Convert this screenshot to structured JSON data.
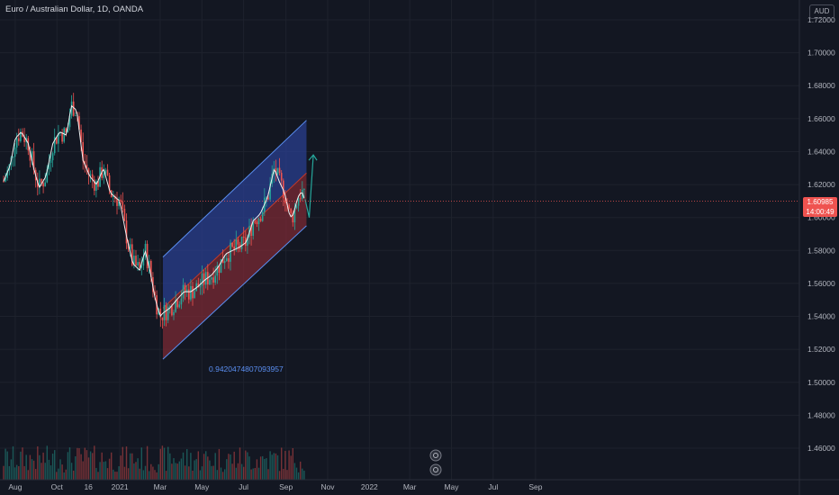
{
  "header": {
    "title": "Euro / Australian Dollar, 1D, OANDA"
  },
  "price_axis": {
    "currency": "AUD",
    "current_price": "1.60985",
    "countdown": "14:00:49"
  },
  "annotations": {
    "channel_ratio": "0.9420474807093957"
  },
  "colors": {
    "background": "#131722",
    "bull": "#26a69a",
    "bear": "#ef5350",
    "channel_upper_fill": "#2a3f8f",
    "channel_lower_fill": "#7a2a34",
    "moving_average": "#f0f0f0",
    "projection_arrow": "#26a69a"
  },
  "chart_data": {
    "type": "candlestick",
    "x_ticks": [
      "Aug",
      "Oct",
      "16",
      "2021",
      "Mar",
      "May",
      "Jul",
      "Sep",
      "Nov",
      "2022",
      "Mar",
      "May",
      "Jul",
      "Sep"
    ],
    "y_ticks": [
      "1.72000",
      "1.70000",
      "1.68000",
      "1.66000",
      "1.64000",
      "1.62000",
      "1.60000",
      "1.58000",
      "1.56000",
      "1.54000",
      "1.52000",
      "1.50000",
      "1.48000",
      "1.46000"
    ],
    "ylim": [
      1.45,
      1.72
    ],
    "close_path": [
      {
        "t": "2020-07-15",
        "v": 1.622
      },
      {
        "t": "2020-07-25",
        "v": 1.632
      },
      {
        "t": "2020-08-01",
        "v": 1.648
      },
      {
        "t": "2020-08-10",
        "v": 1.652
      },
      {
        "t": "2020-08-20",
        "v": 1.645
      },
      {
        "t": "2020-08-28",
        "v": 1.63
      },
      {
        "t": "2020-09-05",
        "v": 1.618
      },
      {
        "t": "2020-09-15",
        "v": 1.625
      },
      {
        "t": "2020-09-25",
        "v": 1.645
      },
      {
        "t": "2020-10-05",
        "v": 1.652
      },
      {
        "t": "2020-10-15",
        "v": 1.65
      },
      {
        "t": "2020-10-22",
        "v": 1.668
      },
      {
        "t": "2020-10-30",
        "v": 1.665
      },
      {
        "t": "2020-11-08",
        "v": 1.635
      },
      {
        "t": "2020-11-18",
        "v": 1.625
      },
      {
        "t": "2020-11-28",
        "v": 1.62
      },
      {
        "t": "2020-12-08",
        "v": 1.63
      },
      {
        "t": "2020-12-18",
        "v": 1.615
      },
      {
        "t": "2021-01-01",
        "v": 1.61
      },
      {
        "t": "2021-01-10",
        "v": 1.59
      },
      {
        "t": "2021-01-20",
        "v": 1.572
      },
      {
        "t": "2021-01-30",
        "v": 1.568
      },
      {
        "t": "2021-02-07",
        "v": 1.58
      },
      {
        "t": "2021-02-14",
        "v": 1.568
      },
      {
        "t": "2021-02-22",
        "v": 1.55
      },
      {
        "t": "2021-03-01",
        "v": 1.54
      },
      {
        "t": "2021-03-05",
        "v": 1.542
      },
      {
        "t": "2021-03-15",
        "v": 1.545
      },
      {
        "t": "2021-03-25",
        "v": 1.55
      },
      {
        "t": "2021-04-05",
        "v": 1.555
      },
      {
        "t": "2021-04-15",
        "v": 1.555
      },
      {
        "t": "2021-04-25",
        "v": 1.558
      },
      {
        "t": "2021-05-05",
        "v": 1.562
      },
      {
        "t": "2021-05-15",
        "v": 1.565
      },
      {
        "t": "2021-05-25",
        "v": 1.57
      },
      {
        "t": "2021-06-05",
        "v": 1.578
      },
      {
        "t": "2021-06-15",
        "v": 1.58
      },
      {
        "t": "2021-06-25",
        "v": 1.582
      },
      {
        "t": "2021-07-05",
        "v": 1.585
      },
      {
        "t": "2021-07-15",
        "v": 1.598
      },
      {
        "t": "2021-07-25",
        "v": 1.602
      },
      {
        "t": "2021-08-05",
        "v": 1.612
      },
      {
        "t": "2021-08-15",
        "v": 1.63
      },
      {
        "t": "2021-08-22",
        "v": 1.622
      },
      {
        "t": "2021-08-30",
        "v": 1.615
      },
      {
        "t": "2021-09-07",
        "v": 1.6
      },
      {
        "t": "2021-09-12",
        "v": 1.602
      },
      {
        "t": "2021-09-18",
        "v": 1.612
      },
      {
        "t": "2021-09-24",
        "v": 1.616
      },
      {
        "t": "2021-09-29",
        "v": 1.61
      }
    ],
    "channel": {
      "upper": [
        {
          "t": "2021-03-05",
          "v": 1.576
        },
        {
          "t": "2021-10-01",
          "v": 1.659
        }
      ],
      "middle": [
        {
          "t": "2021-03-05",
          "v": 1.545
        },
        {
          "t": "2021-10-01",
          "v": 1.627
        }
      ],
      "lower": [
        {
          "t": "2021-03-05",
          "v": 1.514
        },
        {
          "t": "2021-10-01",
          "v": 1.595
        }
      ]
    },
    "projection": [
      {
        "t": "2021-09-29",
        "v": 1.611
      },
      {
        "t": "2021-10-05",
        "v": 1.6
      },
      {
        "t": "2021-10-11",
        "v": 1.638
      }
    ]
  }
}
